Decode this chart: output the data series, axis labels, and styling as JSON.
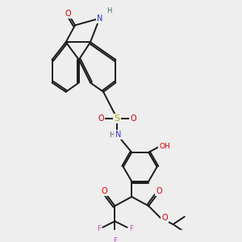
{
  "bg_color": "#eeeeee",
  "bond_color": "#1a1a1a",
  "atom_colors": {
    "O": "#cc0000",
    "N": "#3333cc",
    "H": "#336666",
    "S": "#aaaa00",
    "F": "#cc44cc",
    "C": "#1a1a1a"
  }
}
